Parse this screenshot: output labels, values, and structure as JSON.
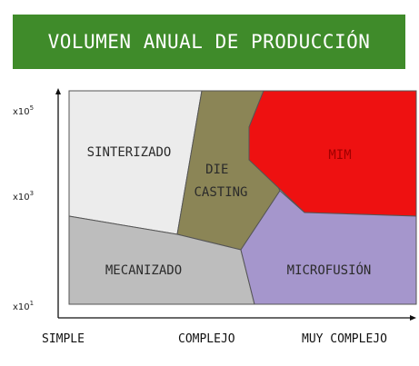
{
  "title": "VOLUMEN ANUAL DE PRODUCCIÓN",
  "regions": [
    {
      "id": "sinterizado",
      "label_lines": [
        "SINTERIZADO"
      ],
      "color": "#ececec"
    },
    {
      "id": "die-casting",
      "label_lines": [
        "DIE",
        "CASTING"
      ],
      "color": "#8b8556"
    },
    {
      "id": "mim",
      "label_lines": [
        "MIM"
      ],
      "color": "#ee1111"
    },
    {
      "id": "mecanizado",
      "label_lines": [
        "MECANIZADO"
      ],
      "color": "#bdbdbd"
    },
    {
      "id": "microfusion",
      "label_lines": [
        "MICROFUSIÓN"
      ],
      "color": "#a596cc"
    }
  ],
  "y_axis": {
    "ticks": [
      {
        "base": "x10",
        "exp": "5"
      },
      {
        "base": "x10",
        "exp": "3"
      },
      {
        "base": "x10",
        "exp": "1"
      }
    ]
  },
  "x_axis": {
    "labels": [
      "SIMPLE",
      "COMPLEJO",
      "MUY COMPLEJO"
    ]
  },
  "colors": {
    "title_bg": "#3f8b2a",
    "title_text": "#ffffff",
    "border": "#555555"
  }
}
